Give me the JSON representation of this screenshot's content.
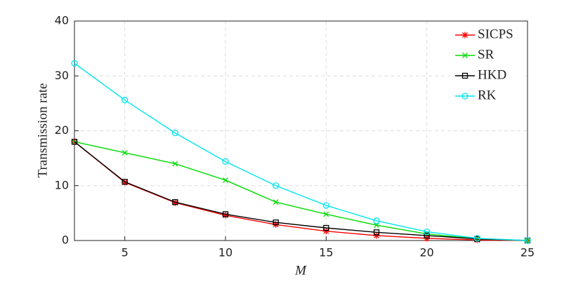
{
  "chart_data": {
    "type": "line",
    "x_label": "M",
    "y_label": "Transmission rate",
    "x": [
      2.5,
      5,
      7.5,
      10,
      12.5,
      15,
      17.5,
      20,
      22.5,
      25
    ],
    "series": [
      {
        "name": "SICPS",
        "color": "#ff0000",
        "marker": "asterisk",
        "values": [
          18,
          10.6,
          6.9,
          4.6,
          2.9,
          1.7,
          0.9,
          0.4,
          0.1,
          0
        ]
      },
      {
        "name": "SR",
        "color": "#00dd00",
        "marker": "x",
        "values": [
          18,
          16,
          14,
          11,
          7,
          4.8,
          2.8,
          1.2,
          0.3,
          0
        ]
      },
      {
        "name": "HKD",
        "color": "#000000",
        "marker": "square",
        "values": [
          18,
          10.7,
          7,
          4.8,
          3.3,
          2.3,
          1.5,
          0.9,
          0.3,
          0
        ]
      },
      {
        "name": "RK",
        "color": "#00e5ee",
        "marker": "circle",
        "values": [
          32.3,
          25.6,
          19.6,
          14.4,
          10,
          6.4,
          3.6,
          1.6,
          0.4,
          0
        ]
      }
    ],
    "xlim": [
      2.5,
      25
    ],
    "xticks": [
      5,
      10,
      15,
      20,
      25
    ],
    "ylim": [
      0,
      40
    ],
    "yticks": [
      0,
      10,
      20,
      30,
      40
    ],
    "grid": true,
    "legend": "top-right"
  }
}
